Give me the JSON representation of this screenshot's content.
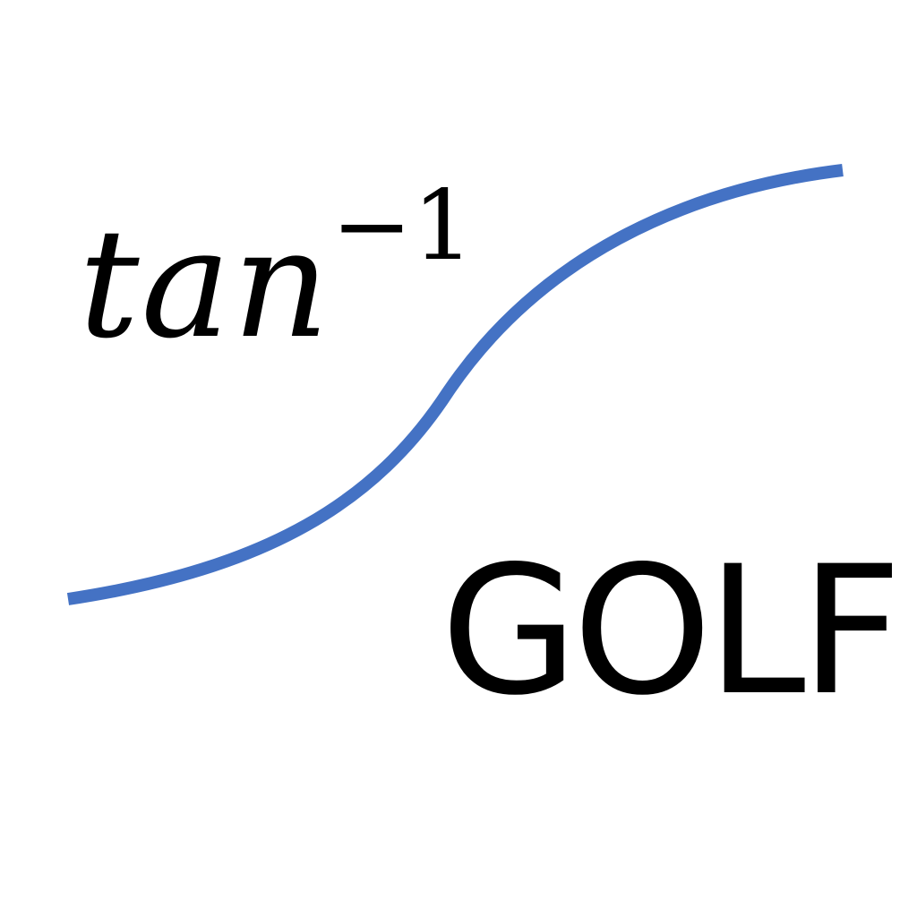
{
  "logo": {
    "function_name": "tan",
    "exponent": "−1",
    "wordmark": "GOLF",
    "curve_color": "#4472c4",
    "text_color": "#000000",
    "background_color": "#ffffff"
  }
}
